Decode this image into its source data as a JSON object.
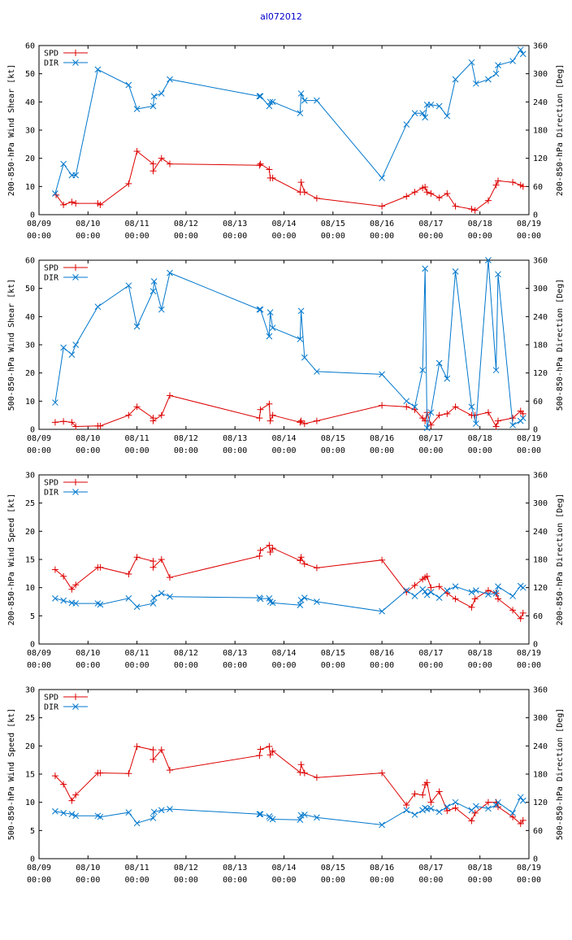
{
  "title": "al072012",
  "colors": {
    "spd": "#dd0000",
    "dir": "#0077cc",
    "title": "#0000cc"
  },
  "chart_data": [
    {
      "type": "line",
      "ylabel_left": "200-850-hPa Wind Shear [kt]",
      "ylabel_right": "200-850-hPa Direction [Deg]",
      "ylim_left": [
        0,
        60
      ],
      "yticks_left": [
        "0",
        "10",
        "20",
        "30",
        "40",
        "50",
        "60"
      ],
      "ylim_right": [
        0,
        360
      ],
      "yticks_right": [
        "0",
        "60",
        "120",
        "180",
        "240",
        "300",
        "360"
      ],
      "xlim": [
        0,
        10
      ],
      "xticks": [
        {
          "date": "08/09",
          "time": "00:00"
        },
        {
          "date": "08/10",
          "time": "00:00"
        },
        {
          "date": "08/11",
          "time": "00:00"
        },
        {
          "date": "08/12",
          "time": "00:00"
        },
        {
          "date": "08/13",
          "time": "00:00"
        },
        {
          "date": "08/14",
          "time": "00:00"
        },
        {
          "date": "08/15",
          "time": "00:00"
        },
        {
          "date": "08/16",
          "time": "00:00"
        },
        {
          "date": "08/17",
          "time": "00:00"
        },
        {
          "date": "08/18",
          "time": "00:00"
        },
        {
          "date": "08/19",
          "time": "00:00"
        }
      ],
      "legend": [
        "SPD",
        "DIR"
      ],
      "series": [
        {
          "name": "SPD",
          "axis": "left",
          "marker": "plus",
          "x": [
            0.35,
            0.5,
            0.67,
            0.75,
            1.2,
            1.25,
            1.83,
            2.0,
            2.33,
            2.33,
            2.5,
            2.67,
            4.5,
            4.52,
            4.7,
            4.72,
            4.77,
            5.33,
            5.35,
            5.42,
            5.67,
            7.0,
            7.5,
            7.67,
            7.83,
            7.88,
            7.92,
            8.0,
            8.17,
            8.33,
            8.5,
            8.83,
            8.9,
            9.17,
            9.33,
            9.37,
            9.67,
            9.83,
            9.88
          ],
          "values": [
            7,
            3.5,
            4.5,
            4,
            4,
            3.5,
            11,
            22.5,
            18,
            15.5,
            20,
            18,
            17.5,
            18,
            16,
            13,
            13,
            8,
            11.5,
            8,
            5.8,
            3,
            6.5,
            8,
            9.5,
            9.8,
            8,
            7.5,
            6,
            7.5,
            3,
            2,
            1.5,
            5,
            10.5,
            12,
            11.5,
            10.5,
            10
          ]
        },
        {
          "name": "DIR",
          "axis": "left",
          "marker": "x",
          "x": [
            0.33,
            0.5,
            0.67,
            0.75,
            1.2,
            1.83,
            2.0,
            2.33,
            2.35,
            2.5,
            2.67,
            4.5,
            4.52,
            4.7,
            4.72,
            4.77,
            5.33,
            5.35,
            5.42,
            5.67,
            7.0,
            7.5,
            7.67,
            7.83,
            7.88,
            7.92,
            8.0,
            8.17,
            8.33,
            8.5,
            8.83,
            8.92,
            9.17,
            9.33,
            9.37,
            9.67,
            9.83,
            9.88
          ],
          "values": [
            7.5,
            18,
            14,
            14,
            51.5,
            46,
            37.5,
            38.5,
            42,
            43,
            48,
            42,
            42,
            38.5,
            40,
            40,
            36,
            43,
            40.5,
            40.5,
            13,
            32,
            36,
            36,
            34.5,
            39,
            39,
            38.5,
            35,
            48,
            54,
            46.5,
            48,
            50,
            53,
            54.5,
            58.5,
            57
          ]
        }
      ]
    },
    {
      "type": "line",
      "ylabel_left": "500-850-hPa Wind Shear [kt]",
      "ylabel_right": "500-850-hPa Direction [Deg]",
      "ylim_left": [
        0,
        60
      ],
      "yticks_left": [
        "0",
        "10",
        "20",
        "30",
        "40",
        "50",
        "60"
      ],
      "ylim_right": [
        0,
        360
      ],
      "yticks_right": [
        "0",
        "60",
        "120",
        "180",
        "240",
        "300",
        "360"
      ],
      "xlim": [
        0,
        10
      ],
      "xticks": [
        {
          "date": "08/09",
          "time": "00:00"
        },
        {
          "date": "08/10",
          "time": "00:00"
        },
        {
          "date": "08/11",
          "time": "00:00"
        },
        {
          "date": "08/12",
          "time": "00:00"
        },
        {
          "date": "08/13",
          "time": "00:00"
        },
        {
          "date": "08/14",
          "time": "00:00"
        },
        {
          "date": "08/15",
          "time": "00:00"
        },
        {
          "date": "08/16",
          "time": "00:00"
        },
        {
          "date": "08/17",
          "time": "00:00"
        },
        {
          "date": "08/18",
          "time": "00:00"
        },
        {
          "date": "08/19",
          "time": "00:00"
        }
      ],
      "legend": [
        "SPD",
        "DIR"
      ],
      "series": [
        {
          "name": "SPD",
          "axis": "left",
          "marker": "plus",
          "x": [
            0.33,
            0.5,
            0.67,
            0.75,
            1.2,
            1.25,
            1.83,
            2.0,
            2.33,
            2.33,
            2.5,
            2.67,
            4.5,
            4.52,
            4.7,
            4.72,
            4.77,
            5.33,
            5.35,
            5.42,
            5.67,
            7.0,
            7.5,
            7.67,
            7.83,
            7.88,
            7.92,
            8.0,
            8.17,
            8.33,
            8.5,
            8.83,
            8.9,
            9.17,
            9.33,
            9.37,
            9.67,
            9.83,
            9.88
          ],
          "values": [
            2.5,
            2.8,
            2.5,
            1,
            1.2,
            1.2,
            5,
            8,
            4,
            3,
            5,
            12,
            4,
            7,
            9,
            3,
            5,
            2.5,
            3,
            2,
            3,
            8.5,
            8,
            7,
            4,
            3,
            6,
            1.5,
            5,
            5.5,
            8,
            5,
            5,
            6,
            1,
            3,
            4,
            6.5,
            5.5
          ]
        },
        {
          "name": "DIR",
          "axis": "left",
          "marker": "x",
          "x": [
            0.33,
            0.5,
            0.67,
            0.75,
            1.2,
            1.83,
            2.0,
            2.33,
            2.35,
            2.5,
            2.67,
            4.5,
            4.52,
            4.7,
            4.72,
            4.77,
            5.33,
            5.35,
            5.42,
            5.67,
            7.0,
            7.5,
            7.67,
            7.83,
            7.88,
            7.92,
            8.0,
            8.17,
            8.33,
            8.5,
            8.83,
            8.92,
            9.17,
            9.33,
            9.37,
            9.67,
            9.83,
            9.88
          ],
          "values": [
            9.5,
            29,
            26.5,
            30,
            43.5,
            51,
            36.5,
            49,
            52.5,
            42.5,
            55.5,
            42.5,
            42.5,
            33,
            41.5,
            36,
            32,
            42,
            25.5,
            20.5,
            19.5,
            10,
            8,
            21,
            57,
            0.5,
            6,
            23.5,
            18,
            56,
            8,
            2,
            60,
            21,
            55,
            1.5,
            3,
            4
          ]
        }
      ]
    },
    {
      "type": "line",
      "ylabel_left": "200-850-hPa Wind Speed [kt]",
      "ylabel_right": "200-850-hPa Direction [Deg]",
      "ylim_left": [
        0,
        30
      ],
      "yticks_left": [
        "0",
        "5",
        "10",
        "15",
        "20",
        "25",
        "30"
      ],
      "ylim_right": [
        0,
        360
      ],
      "yticks_right": [
        "0",
        "60",
        "120",
        "180",
        "240",
        "300",
        "360"
      ],
      "xlim": [
        0,
        10
      ],
      "xticks": [
        {
          "date": "08/09",
          "time": "00:00"
        },
        {
          "date": "08/10",
          "time": "00:00"
        },
        {
          "date": "08/11",
          "time": "00:00"
        },
        {
          "date": "08/12",
          "time": "00:00"
        },
        {
          "date": "08/13",
          "time": "00:00"
        },
        {
          "date": "08/14",
          "time": "00:00"
        },
        {
          "date": "08/15",
          "time": "00:00"
        },
        {
          "date": "08/16",
          "time": "00:00"
        },
        {
          "date": "08/17",
          "time": "00:00"
        },
        {
          "date": "08/18",
          "time": "00:00"
        },
        {
          "date": "08/19",
          "time": "00:00"
        }
      ],
      "legend": [
        "SPD",
        "DIR"
      ],
      "series": [
        {
          "name": "SPD",
          "axis": "left",
          "marker": "plus",
          "x": [
            0.33,
            0.5,
            0.67,
            0.75,
            1.2,
            1.25,
            1.83,
            2.0,
            2.33,
            2.33,
            2.5,
            2.67,
            4.5,
            4.52,
            4.7,
            4.72,
            4.77,
            5.33,
            5.35,
            5.42,
            5.67,
            7.0,
            7.5,
            7.67,
            7.83,
            7.88,
            7.92,
            8.0,
            8.17,
            8.33,
            8.5,
            8.83,
            8.9,
            9.17,
            9.33,
            9.37,
            9.67,
            9.83,
            9.88
          ],
          "values": [
            13.2,
            12,
            9.7,
            10.5,
            13.6,
            13.6,
            12.4,
            15.4,
            14.7,
            13.6,
            15,
            11.8,
            15.6,
            16.6,
            17.5,
            16.3,
            17,
            14.8,
            15.4,
            14.2,
            13.5,
            14.9,
            9.2,
            10.4,
            11.5,
            11.8,
            12,
            10,
            10.2,
            9,
            8,
            6.5,
            8,
            9.5,
            9,
            8,
            6,
            4.5,
            5.5
          ]
        },
        {
          "name": "DIR",
          "axis": "left",
          "marker": "x",
          "x": [
            0.33,
            0.5,
            0.67,
            0.75,
            1.2,
            1.25,
            1.83,
            2.0,
            2.33,
            2.35,
            2.5,
            2.67,
            4.5,
            4.52,
            4.7,
            4.72,
            4.77,
            5.33,
            5.35,
            5.42,
            5.67,
            7.0,
            7.5,
            7.67,
            7.83,
            7.88,
            7.92,
            8.0,
            8.17,
            8.33,
            8.5,
            8.83,
            8.92,
            9.17,
            9.33,
            9.37,
            9.67,
            9.83,
            9.88
          ],
          "values": [
            8.1,
            7.7,
            7.3,
            7.2,
            7.2,
            7.0,
            8.1,
            6.6,
            7.2,
            8.2,
            9.0,
            8.4,
            8.2,
            8.0,
            8.1,
            7.5,
            7.3,
            6.9,
            7.8,
            8.2,
            7.5,
            5.8,
            9.5,
            8.5,
            9.7,
            9.3,
            8.7,
            9.2,
            8.2,
            9.5,
            10.2,
            9.2,
            9.5,
            8.8,
            9.0,
            10.2,
            8.5,
            10.3,
            10.0
          ]
        }
      ]
    },
    {
      "type": "line",
      "ylabel_left": "500-850-hPa Wind Speed [kt]",
      "ylabel_right": "500-850-hPa Direction [Deg]",
      "ylim_left": [
        0,
        30
      ],
      "yticks_left": [
        "0",
        "5",
        "10",
        "15",
        "20",
        "25",
        "30"
      ],
      "ylim_right": [
        0,
        360
      ],
      "yticks_right": [
        "0",
        "60",
        "120",
        "180",
        "240",
        "300",
        "360"
      ],
      "xlim": [
        0,
        10
      ],
      "xticks": [
        {
          "date": "08/09",
          "time": "00:00"
        },
        {
          "date": "08/10",
          "time": "00:00"
        },
        {
          "date": "08/11",
          "time": "00:00"
        },
        {
          "date": "08/12",
          "time": "00:00"
        },
        {
          "date": "08/13",
          "time": "00:00"
        },
        {
          "date": "08/14",
          "time": "00:00"
        },
        {
          "date": "08/15",
          "time": "00:00"
        },
        {
          "date": "08/16",
          "time": "00:00"
        },
        {
          "date": "08/17",
          "time": "00:00"
        },
        {
          "date": "08/18",
          "time": "00:00"
        },
        {
          "date": "08/19",
          "time": "00:00"
        }
      ],
      "legend": [
        "SPD",
        "DIR"
      ],
      "series": [
        {
          "name": "SPD",
          "axis": "left",
          "marker": "plus",
          "x": [
            0.33,
            0.5,
            0.67,
            0.75,
            1.2,
            1.25,
            1.83,
            2.0,
            2.33,
            2.33,
            2.5,
            2.67,
            4.5,
            4.52,
            4.7,
            4.72,
            4.77,
            5.33,
            5.35,
            5.42,
            5.67,
            7.0,
            7.5,
            7.67,
            7.83,
            7.88,
            7.92,
            8.0,
            8.17,
            8.33,
            8.5,
            8.83,
            8.9,
            9.17,
            9.33,
            9.37,
            9.67,
            9.83,
            9.88
          ],
          "values": [
            14.7,
            13.2,
            10.3,
            11.3,
            15.2,
            15.2,
            15.1,
            19.9,
            19.3,
            17.6,
            19.3,
            15.7,
            18.3,
            19.4,
            19.9,
            18.4,
            19.1,
            15.3,
            16.7,
            15.2,
            14.4,
            15.2,
            9.5,
            11.5,
            11.3,
            13.1,
            13.5,
            10,
            11.9,
            8.5,
            9,
            6.7,
            8.1,
            10,
            10,
            9.2,
            7.4,
            6.2,
            6.8
          ]
        },
        {
          "name": "DIR",
          "axis": "left",
          "marker": "x",
          "x": [
            0.33,
            0.5,
            0.67,
            0.75,
            1.2,
            1.25,
            1.83,
            2.0,
            2.33,
            2.35,
            2.5,
            2.67,
            4.5,
            4.52,
            4.7,
            4.72,
            4.77,
            5.33,
            5.35,
            5.42,
            5.67,
            7.0,
            7.5,
            7.67,
            7.83,
            7.88,
            7.92,
            8.0,
            8.17,
            8.33,
            8.5,
            8.83,
            8.92,
            9.17,
            9.33,
            9.37,
            9.67,
            9.83,
            9.88
          ],
          "values": [
            8.4,
            8.1,
            7.9,
            7.6,
            7.6,
            7.4,
            8.2,
            6.3,
            7.2,
            8.3,
            8.6,
            8.8,
            7.9,
            7.9,
            7.5,
            7.2,
            7.0,
            6.9,
            7.7,
            7.8,
            7.3,
            6.0,
            8.6,
            7.8,
            8.6,
            9.0,
            8.8,
            8.9,
            8.3,
            9.2,
            10.0,
            8.6,
            9.3,
            8.9,
            9.5,
            10.0,
            8.1,
            10.9,
            10.3
          ]
        }
      ]
    }
  ]
}
